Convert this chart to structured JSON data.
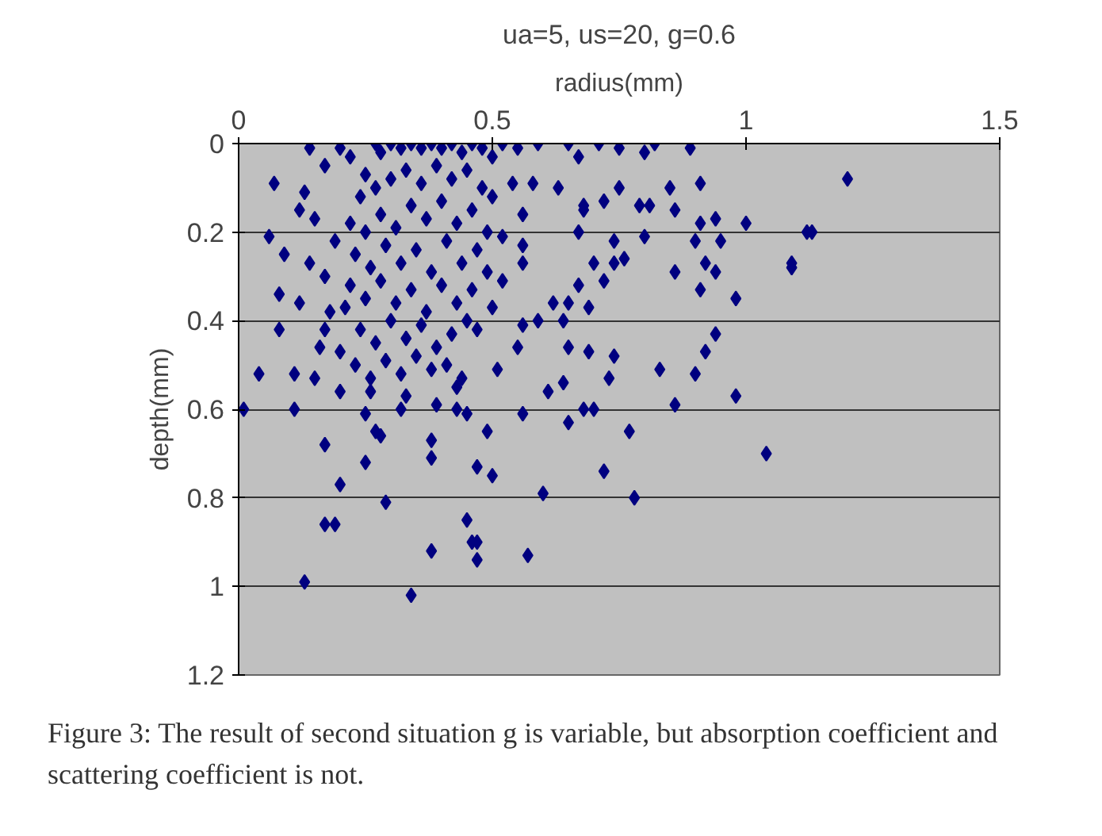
{
  "chart_data": {
    "type": "scatter",
    "title": "ua=5, us=20, g=0.6",
    "xlabel": "radius(mm)",
    "ylabel": "depth(mm)",
    "xlim": [
      0,
      1.5
    ],
    "xticks": [
      0,
      0.5,
      1,
      1.5
    ],
    "ylim": [
      1.2,
      0
    ],
    "yticks": [
      0,
      0.2,
      0.4,
      0.6,
      0.8,
      1,
      1.2
    ],
    "grid": "y",
    "marker": "diamond",
    "annotations": [
      "Figure 3: The result of second situation g is variable, but absorption coefficient and scattering coefficient is not."
    ],
    "series": [
      {
        "color": "#000080",
        "x": [
          1.2,
          1.12,
          1.09,
          1.04,
          1.0,
          1.13,
          1.09,
          0.98,
          0.98,
          0.86,
          0.77,
          0.72,
          0.78,
          0.6,
          0.57,
          0.47,
          0.47,
          0.49,
          0.56,
          0.65,
          0.68,
          0.7,
          0.47,
          0.5,
          0.61,
          0.64,
          0.73,
          0.01,
          0.11,
          0.17,
          0.2,
          0.25,
          0.17,
          0.19,
          0.13,
          0.29,
          0.34,
          0.38,
          0.45,
          0.46,
          0.38,
          0.38,
          0.27,
          0.28,
          0.25,
          0.32,
          0.39,
          0.43,
          0.45,
          0.2,
          0.26,
          0.43,
          0.33,
          0.71,
          0.75,
          0.82,
          0.89,
          0.91,
          0.75,
          0.85,
          0.86,
          0.79,
          0.81,
          0.91,
          0.94,
          0.95,
          0.9,
          0.8,
          0.74,
          0.68,
          0.72,
          0.67,
          0.7,
          0.76,
          0.74,
          0.86,
          0.92,
          0.94,
          0.91,
          0.72,
          0.67,
          0.69,
          0.65,
          0.62,
          0.64,
          0.59,
          0.65,
          0.69,
          0.74,
          0.83,
          0.9,
          0.92,
          0.94,
          0.56,
          0.55,
          0.51,
          0.68,
          0.59,
          0.65,
          0.8,
          0.67,
          0.63,
          0.58,
          0.54,
          0.56,
          0.52,
          0.56,
          0.56,
          0.52,
          0.49,
          0.5,
          0.47,
          0.07,
          0.14,
          0.2,
          0.17,
          0.27,
          0.06,
          0.09,
          0.08,
          0.04,
          0.08,
          0.11,
          0.15,
          0.12,
          0.14,
          0.12,
          0.13,
          0.19,
          0.21,
          0.2,
          0.17,
          0.22,
          0.25,
          0.28,
          0.3,
          0.32,
          0.34,
          0.36,
          0.38,
          0.4,
          0.42,
          0.44,
          0.46,
          0.48,
          0.5,
          0.52,
          0.55,
          0.24,
          0.27,
          0.3,
          0.33,
          0.36,
          0.39,
          0.42,
          0.45,
          0.48,
          0.5,
          0.22,
          0.25,
          0.28,
          0.31,
          0.34,
          0.37,
          0.4,
          0.43,
          0.46,
          0.49,
          0.23,
          0.26,
          0.29,
          0.32,
          0.35,
          0.38,
          0.41,
          0.44,
          0.47,
          0.22,
          0.25,
          0.28,
          0.31,
          0.34,
          0.37,
          0.4,
          0.43,
          0.46,
          0.24,
          0.27,
          0.3,
          0.33,
          0.36,
          0.39,
          0.42,
          0.45,
          0.23,
          0.26,
          0.29,
          0.32,
          0.35,
          0.38,
          0.41,
          0.44,
          0.15,
          0.17,
          0.18,
          0.16
        ],
        "values": [
          0.08,
          0.2,
          0.27,
          0.7,
          0.18,
          0.2,
          0.28,
          0.35,
          0.57,
          0.59,
          0.65,
          0.74,
          0.8,
          0.79,
          0.93,
          0.94,
          0.9,
          0.65,
          0.61,
          0.63,
          0.6,
          0.6,
          0.73,
          0.75,
          0.56,
          0.54,
          0.53,
          0.6,
          0.6,
          0.68,
          0.77,
          0.72,
          0.86,
          0.86,
          0.99,
          0.81,
          1.02,
          0.92,
          0.85,
          0.9,
          0.71,
          0.67,
          0.65,
          0.66,
          0.61,
          0.6,
          0.59,
          0.6,
          0.61,
          0.56,
          0.56,
          0.55,
          0.57,
          0.0,
          0.01,
          0.0,
          0.01,
          0.09,
          0.1,
          0.1,
          0.15,
          0.14,
          0.14,
          0.18,
          0.17,
          0.22,
          0.22,
          0.21,
          0.22,
          0.15,
          0.13,
          0.2,
          0.27,
          0.26,
          0.27,
          0.29,
          0.27,
          0.29,
          0.33,
          0.31,
          0.32,
          0.37,
          0.36,
          0.36,
          0.4,
          0.4,
          0.46,
          0.47,
          0.48,
          0.51,
          0.52,
          0.47,
          0.43,
          0.41,
          0.46,
          0.51,
          0.14,
          0.0,
          0.0,
          0.02,
          0.03,
          0.1,
          0.09,
          0.09,
          0.16,
          0.21,
          0.23,
          0.27,
          0.31,
          0.29,
          0.37,
          0.42,
          0.09,
          0.01,
          0.01,
          0.05,
          0.0,
          0.21,
          0.25,
          0.34,
          0.52,
          0.42,
          0.52,
          0.53,
          0.36,
          0.27,
          0.15,
          0.11,
          0.22,
          0.37,
          0.47,
          0.42,
          0.03,
          0.07,
          0.02,
          0.0,
          0.01,
          0.0,
          0.01,
          0.0,
          0.01,
          0.0,
          0.02,
          0.0,
          0.01,
          0.03,
          0.0,
          0.01,
          0.12,
          0.1,
          0.08,
          0.06,
          0.09,
          0.05,
          0.08,
          0.06,
          0.1,
          0.12,
          0.18,
          0.2,
          0.16,
          0.19,
          0.14,
          0.17,
          0.13,
          0.18,
          0.15,
          0.2,
          0.25,
          0.28,
          0.23,
          0.27,
          0.24,
          0.29,
          0.22,
          0.27,
          0.24,
          0.32,
          0.35,
          0.31,
          0.36,
          0.33,
          0.38,
          0.32,
          0.36,
          0.33,
          0.42,
          0.45,
          0.4,
          0.44,
          0.41,
          0.46,
          0.43,
          0.4,
          0.5,
          0.53,
          0.49,
          0.52,
          0.48,
          0.51,
          0.5,
          0.53,
          0.17,
          0.3,
          0.38,
          0.46
        ]
      }
    ]
  }
}
